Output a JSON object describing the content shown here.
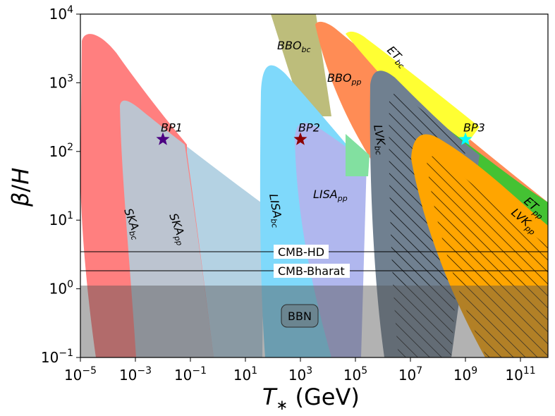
{
  "chart_data": {
    "type": "area",
    "title": "",
    "xlabel": "T_* (GeV)",
    "ylabel": "β/H",
    "x_scale": "log",
    "y_scale": "log",
    "xlim": [
      1e-05,
      1000000000000.0
    ],
    "ylim": [
      0.1,
      10000
    ],
    "x_ticks": [
      {
        "value": 1e-05,
        "label": "10^-5"
      },
      {
        "value": 0.001,
        "label": "10^-3"
      },
      {
        "value": 0.1,
        "label": "10^-1"
      },
      {
        "value": 10,
        "label": "10^1"
      },
      {
        "value": 1000.0,
        "label": "10^3"
      },
      {
        "value": 100000.0,
        "label": "10^5"
      },
      {
        "value": 10000000.0,
        "label": "10^7"
      },
      {
        "value": 1000000000.0,
        "label": "10^9"
      },
      {
        "value": 100000000000.0,
        "label": "10^11"
      }
    ],
    "y_ticks": [
      {
        "value": 0.1,
        "label": "10^-1"
      },
      {
        "value": 1,
        "label": "10^0"
      },
      {
        "value": 10,
        "label": "10^1"
      },
      {
        "value": 100,
        "label": "10^2"
      },
      {
        "value": 1000,
        "label": "10^3"
      },
      {
        "value": 10000,
        "label": "10^4"
      }
    ],
    "regions": [
      {
        "label": "SKA_bc",
        "color": "#ff7f7f"
      },
      {
        "label": "SKA_pp",
        "color": "#b4d2e3"
      },
      {
        "label": "BBO_bc",
        "color": "#bdbd7b"
      },
      {
        "label": "BBO_pp",
        "color": "#ff8c55"
      },
      {
        "label": "ET_bc",
        "color": "#ffff33"
      },
      {
        "label": "ET_pp",
        "color": "#44c233"
      },
      {
        "label": "LISA_bc",
        "color": "#7fd9fb"
      },
      {
        "label": "LISA_pp",
        "color": "#b0b7ee"
      },
      {
        "label": "LVK_bc",
        "color": "#708090"
      },
      {
        "label": "LVK_pp",
        "color": "#ffa500"
      }
    ],
    "horizontal_lines": [
      {
        "label": "CMB-HD",
        "y": 3.4
      },
      {
        "label": "CMB-Bharat",
        "y": 1.8
      }
    ],
    "excluded_band": {
      "label": "BBN",
      "y_max": 1.1
    },
    "benchmark_points": [
      {
        "label": "BP1",
        "x": 0.01,
        "y": 150,
        "color": "#4b0082"
      },
      {
        "label": "BP2",
        "x": 1000,
        "y": 150,
        "color": "#8b0000"
      },
      {
        "label": "BP3",
        "x": 1000000000.0,
        "y": 150,
        "color": "#00ffff"
      }
    ]
  }
}
